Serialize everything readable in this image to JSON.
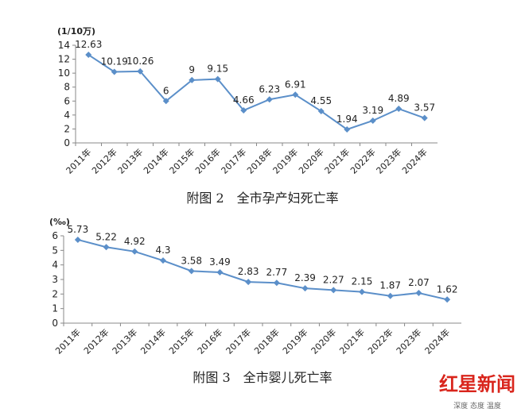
{
  "chart_data": [
    {
      "type": "line",
      "ylabel": "(1/10万)",
      "caption": "附图 2　全市孕产妇死亡率",
      "categories": [
        "2011年",
        "2012年",
        "2013年",
        "2014年",
        "2015年",
        "2016年",
        "2017年",
        "2018年",
        "2019年",
        "2020年",
        "2021年",
        "2022年",
        "2023年",
        "2024年"
      ],
      "series": [
        {
          "color": "#5b8fc9",
          "values": [
            12.63,
            10.19,
            10.26,
            6,
            9,
            9.15,
            4.66,
            6.23,
            6.91,
            4.55,
            1.94,
            3.19,
            4.89,
            3.57
          ]
        }
      ],
      "ylim": [
        0,
        14
      ],
      "yticks": [
        0,
        2,
        4,
        6,
        8,
        10,
        12,
        14
      ]
    },
    {
      "type": "line",
      "ylabel": "(‰)",
      "caption": "附图 3　全市婴儿死亡率",
      "categories": [
        "2011年",
        "2012年",
        "2013年",
        "2014年",
        "2015年",
        "2016年",
        "2017年",
        "2018年",
        "2019年",
        "2020年",
        "2021年",
        "2022年",
        "2023年",
        "2024年"
      ],
      "series": [
        {
          "color": "#5b8fc9",
          "values": [
            5.73,
            5.22,
            4.92,
            4.3,
            3.58,
            3.49,
            2.83,
            2.77,
            2.39,
            2.27,
            2.15,
            1.87,
            2.07,
            1.62
          ]
        }
      ],
      "ylim": [
        0,
        6
      ],
      "yticks": [
        0,
        1,
        2,
        3,
        4,
        5,
        6
      ]
    }
  ],
  "watermark": {
    "title": "红星新闻",
    "subtitle": "深度 态度 温度"
  }
}
